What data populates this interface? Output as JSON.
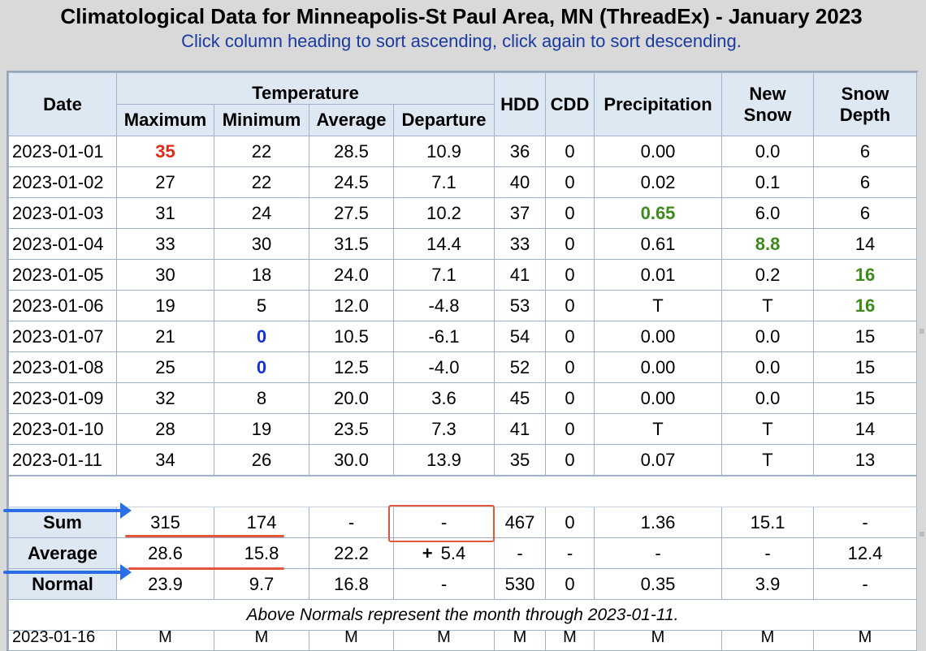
{
  "page": {
    "title": "Climatological Data for Minneapolis-St Paul Area, MN (ThreadEx) - January 2023",
    "subtitle": "Click column heading to sort ascending, click again to sort descending."
  },
  "headers": {
    "date": "Date",
    "temperature": "Temperature",
    "maximum": "Maximum",
    "minimum": "Minimum",
    "average": "Average",
    "departure": "Departure",
    "hdd": "HDD",
    "cdd": "CDD",
    "precipitation": "Precipitation",
    "new_snow": [
      "New",
      "Snow"
    ],
    "snow_depth": [
      "Snow",
      "Depth"
    ]
  },
  "rows": [
    {
      "date": "2023-01-01",
      "max": "35",
      "min": "22",
      "avg": "28.5",
      "dep": "10.9",
      "hdd": "36",
      "cdd": "0",
      "precip": "0.00",
      "new_snow": "0.0",
      "snow_depth": "6"
    },
    {
      "date": "2023-01-02",
      "max": "27",
      "min": "22",
      "avg": "24.5",
      "dep": "7.1",
      "hdd": "40",
      "cdd": "0",
      "precip": "0.02",
      "new_snow": "0.1",
      "snow_depth": "6"
    },
    {
      "date": "2023-01-03",
      "max": "31",
      "min": "24",
      "avg": "27.5",
      "dep": "10.2",
      "hdd": "37",
      "cdd": "0",
      "precip": "0.65",
      "new_snow": "6.0",
      "snow_depth": "6"
    },
    {
      "date": "2023-01-04",
      "max": "33",
      "min": "30",
      "avg": "31.5",
      "dep": "14.4",
      "hdd": "33",
      "cdd": "0",
      "precip": "0.61",
      "new_snow": "8.8",
      "snow_depth": "14"
    },
    {
      "date": "2023-01-05",
      "max": "30",
      "min": "18",
      "avg": "24.0",
      "dep": "7.1",
      "hdd": "41",
      "cdd": "0",
      "precip": "0.01",
      "new_snow": "0.2",
      "snow_depth": "16"
    },
    {
      "date": "2023-01-06",
      "max": "19",
      "min": "5",
      "avg": "12.0",
      "dep": "-4.8",
      "hdd": "53",
      "cdd": "0",
      "precip": "T",
      "new_snow": "T",
      "snow_depth": "16"
    },
    {
      "date": "2023-01-07",
      "max": "21",
      "min": "0",
      "avg": "10.5",
      "dep": "-6.1",
      "hdd": "54",
      "cdd": "0",
      "precip": "0.00",
      "new_snow": "0.0",
      "snow_depth": "15"
    },
    {
      "date": "2023-01-08",
      "max": "25",
      "min": "0",
      "avg": "12.5",
      "dep": "-4.0",
      "hdd": "52",
      "cdd": "0",
      "precip": "0.00",
      "new_snow": "0.0",
      "snow_depth": "15"
    },
    {
      "date": "2023-01-09",
      "max": "32",
      "min": "8",
      "avg": "20.0",
      "dep": "3.6",
      "hdd": "45",
      "cdd": "0",
      "precip": "0.00",
      "new_snow": "0.0",
      "snow_depth": "15"
    },
    {
      "date": "2023-01-10",
      "max": "28",
      "min": "19",
      "avg": "23.5",
      "dep": "7.3",
      "hdd": "41",
      "cdd": "0",
      "precip": "T",
      "new_snow": "T",
      "snow_depth": "14"
    },
    {
      "date": "2023-01-11",
      "max": "34",
      "min": "26",
      "avg": "30.0",
      "dep": "13.9",
      "hdd": "35",
      "cdd": "0",
      "precip": "0.07",
      "new_snow": "T",
      "snow_depth": "13"
    }
  ],
  "summary": [
    {
      "label": "Sum",
      "max": "315",
      "min": "174",
      "avg": "-",
      "dep": "-",
      "hdd": "467",
      "cdd": "0",
      "precip": "1.36",
      "new_snow": "15.1",
      "snow_depth": "-"
    },
    {
      "label": "Average",
      "max": "28.6",
      "min": "15.8",
      "avg": "22.2",
      "dep": "5.4",
      "hdd": "-",
      "cdd": "-",
      "precip": "-",
      "new_snow": "-",
      "snow_depth": "12.4"
    },
    {
      "label": "Normal",
      "max": "23.9",
      "min": "9.7",
      "avg": "16.8",
      "dep": "-",
      "hdd": "530",
      "cdd": "0",
      "precip": "0.35",
      "new_snow": "3.9",
      "snow_depth": "-"
    }
  ],
  "annotation": {
    "plus_sign": "+"
  },
  "note": "Above Normals represent the month through 2023-01-11.",
  "partial_row": {
    "date": "2023-01-16",
    "max": "M",
    "min": "M",
    "avg": "M",
    "dep": "M",
    "hdd": "M",
    "cdd": "M",
    "precip": "M",
    "new_snow": "M",
    "snow_depth": "M"
  },
  "colors": {
    "record_high": "#e02a19",
    "record_low": "#1530d6",
    "record_green": "#3d8a1b",
    "annotation_red": "#e2563e",
    "annotation_blue": "#2a6ee6"
  }
}
